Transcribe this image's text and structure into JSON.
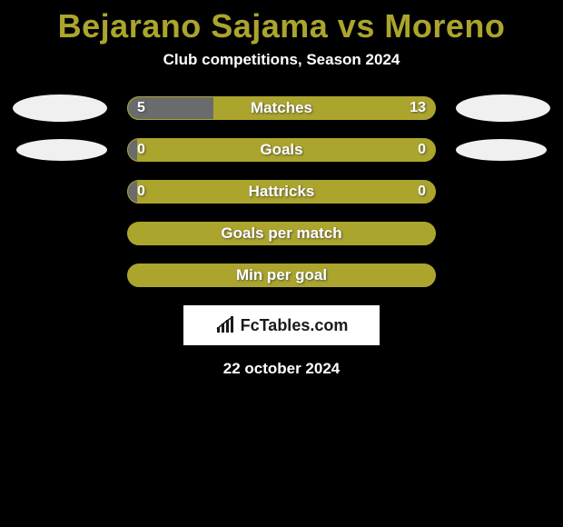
{
  "title": "Bejarano Sajama vs Moreno",
  "subtitle": "Club competitions, Season 2024",
  "date": "22 october 2024",
  "logo_text": "FcTables.com",
  "colors": {
    "background": "#000000",
    "accent": "#aba52e",
    "left_fill": "#6a6b6c",
    "text_primary": "#ffffff",
    "ellipse": "#f0f0f0"
  },
  "rows": [
    {
      "label": "Matches",
      "left_value": "5",
      "right_value": "13",
      "left_pct": 27.8,
      "show_left_ellipse": true,
      "show_right_ellipse": true,
      "ellipse_size": "large"
    },
    {
      "label": "Goals",
      "left_value": "0",
      "right_value": "0",
      "left_pct": 3,
      "show_left_ellipse": true,
      "show_right_ellipse": true,
      "ellipse_size": "small"
    },
    {
      "label": "Hattricks",
      "left_value": "0",
      "right_value": "0",
      "left_pct": 3,
      "show_left_ellipse": false,
      "show_right_ellipse": false,
      "ellipse_size": "small"
    },
    {
      "label": "Goals per match",
      "left_value": "",
      "right_value": "",
      "left_pct": 0,
      "show_left_ellipse": false,
      "show_right_ellipse": false,
      "ellipse_size": "small"
    },
    {
      "label": "Min per goal",
      "left_value": "",
      "right_value": "",
      "left_pct": 0,
      "show_left_ellipse": false,
      "show_right_ellipse": false,
      "ellipse_size": "small"
    }
  ]
}
